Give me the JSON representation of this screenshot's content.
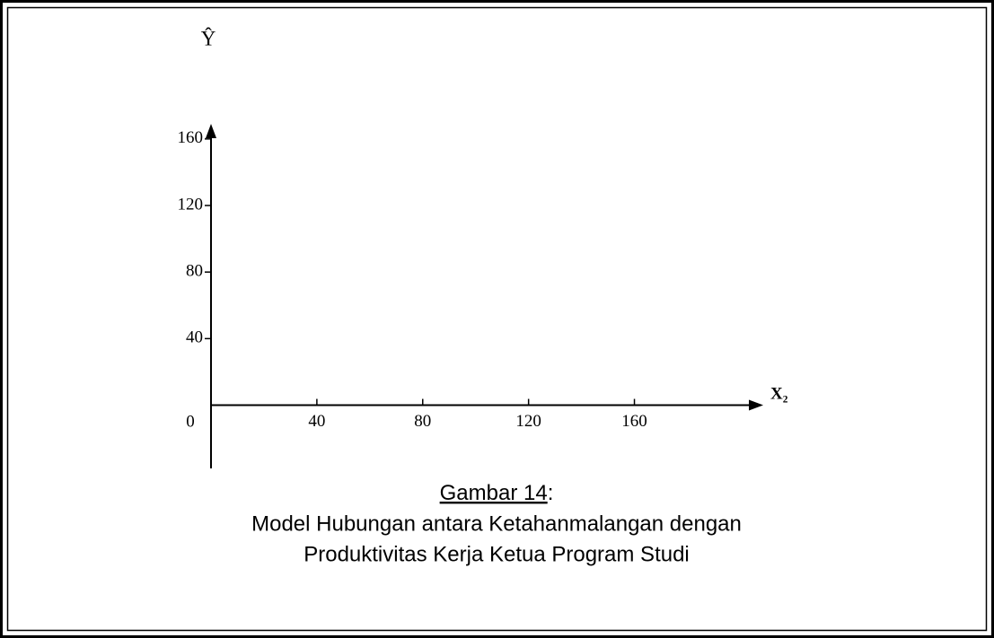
{
  "chart_data": {
    "type": "scatter",
    "y_label": "Ŷ",
    "x_label": "X₂",
    "origin_label": 0,
    "xlim": [
      0,
      208
    ],
    "ylim": [
      -38,
      168
    ],
    "xticks": [
      40,
      80,
      120,
      160
    ],
    "yticks": [
      40,
      80,
      120,
      160
    ],
    "series": [],
    "caption": {
      "number": "Gambar 14",
      "separator": ":",
      "lines": [
        "Model Hubungan antara Ketahanmalangan dengan",
        "Produktivitas Kerja Ketua Program Studi"
      ]
    }
  }
}
